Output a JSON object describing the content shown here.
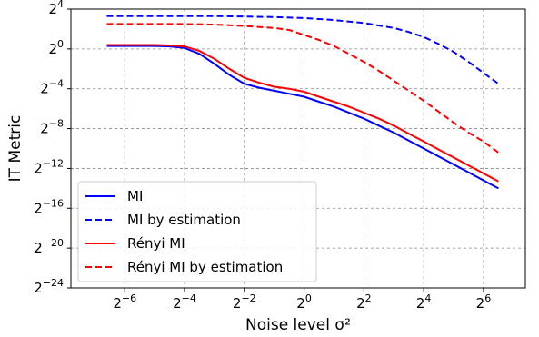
{
  "chart_data": {
    "type": "line",
    "xscale": "log2",
    "yscale": "log2",
    "xlabel": "Noise level σ²",
    "ylabel": "IT Metric",
    "xlim": [
      -7.8,
      7.4
    ],
    "ylim": [
      -24,
      4
    ],
    "x_ticks": [
      {
        "value": -6,
        "base": "2",
        "exp": "−6"
      },
      {
        "value": -4,
        "base": "2",
        "exp": "−4"
      },
      {
        "value": -2,
        "base": "2",
        "exp": "−2"
      },
      {
        "value": 0,
        "base": "2",
        "exp": "0"
      },
      {
        "value": 2,
        "base": "2",
        "exp": "2"
      },
      {
        "value": 4,
        "base": "2",
        "exp": "4"
      },
      {
        "value": 6,
        "base": "2",
        "exp": "6"
      }
    ],
    "y_ticks": [
      {
        "value": 4,
        "base": "2",
        "exp": "4"
      },
      {
        "value": 0,
        "base": "2",
        "exp": "0"
      },
      {
        "value": -4,
        "base": "2",
        "exp": "−4"
      },
      {
        "value": -8,
        "base": "2",
        "exp": "−8"
      },
      {
        "value": -12,
        "base": "2",
        "exp": "−12"
      },
      {
        "value": -16,
        "base": "2",
        "exp": "−16"
      },
      {
        "value": -20,
        "base": "2",
        "exp": "−20"
      },
      {
        "value": -24,
        "base": "2",
        "exp": "−24"
      }
    ],
    "grid": true,
    "legend_position": "lower-left",
    "series": [
      {
        "name": "MI",
        "color": "#0000ff",
        "dash": "solid",
        "x": [
          -6.6,
          -6,
          -5,
          -4.5,
          -4,
          -3.5,
          -3,
          -2.5,
          -2,
          -1.5,
          -1,
          -0.5,
          0,
          0.5,
          1,
          1.5,
          2,
          2.5,
          3,
          3.5,
          4,
          4.5,
          5,
          5.5,
          6,
          6.5
        ],
        "y": [
          0.3,
          0.3,
          0.3,
          0.25,
          0.1,
          -0.5,
          -1.5,
          -2.6,
          -3.5,
          -3.9,
          -4.2,
          -4.5,
          -4.8,
          -5.3,
          -5.8,
          -6.4,
          -7.0,
          -7.7,
          -8.4,
          -9.2,
          -10.0,
          -10.8,
          -11.6,
          -12.4,
          -13.2,
          -14.0
        ]
      },
      {
        "name": "MI by estimation",
        "color": "#0000ff",
        "dash": "dashed",
        "x": [
          -6.6,
          -6,
          -5,
          -4,
          -3,
          -2,
          -1,
          0,
          1,
          2,
          3,
          3.5,
          4,
          4.5,
          5,
          5.5,
          6,
          6.5
        ],
        "y": [
          3.3,
          3.3,
          3.3,
          3.3,
          3.3,
          3.25,
          3.2,
          3.1,
          2.9,
          2.6,
          2.1,
          1.7,
          1.2,
          0.5,
          -0.3,
          -1.3,
          -2.4,
          -3.5
        ]
      },
      {
        "name": "Rényi MI",
        "color": "#ff0000",
        "dash": "solid",
        "x": [
          -6.6,
          -6,
          -5,
          -4.5,
          -4,
          -3.5,
          -3,
          -2.5,
          -2,
          -1.5,
          -1,
          -0.5,
          0,
          0.5,
          1,
          1.5,
          2,
          2.5,
          3,
          3.5,
          4,
          4.5,
          5,
          5.5,
          6,
          6.5
        ],
        "y": [
          0.4,
          0.4,
          0.4,
          0.35,
          0.25,
          -0.2,
          -1.0,
          -2.0,
          -2.9,
          -3.4,
          -3.8,
          -4.0,
          -4.3,
          -4.8,
          -5.3,
          -5.8,
          -6.4,
          -7.0,
          -7.7,
          -8.5,
          -9.3,
          -10.1,
          -10.9,
          -11.7,
          -12.5,
          -13.3
        ]
      },
      {
        "name": "Rényi MI by estimation",
        "color": "#ff0000",
        "dash": "dashed",
        "x": [
          -6.6,
          -6,
          -5,
          -4,
          -3,
          -2,
          -1,
          -0.5,
          0,
          0.5,
          1,
          1.5,
          2,
          2.5,
          3,
          3.5,
          4,
          4.5,
          5,
          5.5,
          6,
          6.5
        ],
        "y": [
          2.5,
          2.5,
          2.5,
          2.5,
          2.45,
          2.3,
          2.1,
          1.9,
          1.4,
          0.9,
          0.3,
          -0.5,
          -1.3,
          -2.2,
          -3.2,
          -4.2,
          -5.2,
          -6.3,
          -7.4,
          -8.4,
          -9.3,
          -10.4
        ]
      }
    ]
  }
}
